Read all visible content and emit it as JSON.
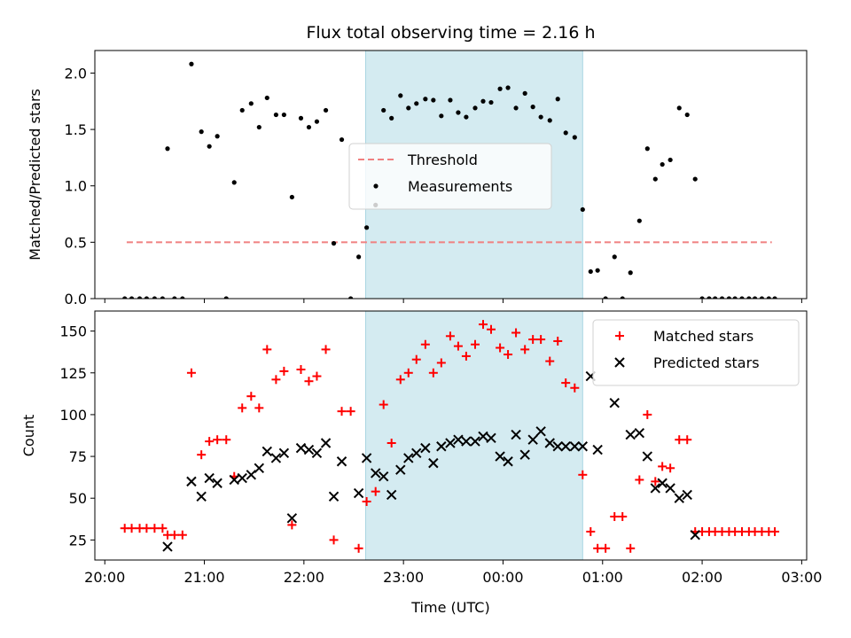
{
  "chart_data": {
    "type": "scatter",
    "title": "Flux total observing time = 2.16 h",
    "xlabel": "Time (UTC)",
    "x_unit": "hours since 20:00 UTC",
    "xlim": [
      -0.1,
      7.05
    ],
    "x_ticks": [
      {
        "value": 0,
        "label": "20:00"
      },
      {
        "value": 1,
        "label": "21:00"
      },
      {
        "value": 2,
        "label": "22:00"
      },
      {
        "value": 3,
        "label": "23:00"
      },
      {
        "value": 4,
        "label": "00:00"
      },
      {
        "value": 5,
        "label": "01:00"
      },
      {
        "value": 6,
        "label": "02:00"
      },
      {
        "value": 7,
        "label": "03:00"
      }
    ],
    "observing_window": {
      "start": 2.62,
      "end": 4.8,
      "color": "#d4ebf1"
    },
    "panels": [
      {
        "name": "ratio",
        "ylabel": "Matched/Predicted stars",
        "ylim": [
          0,
          2.2
        ],
        "y_ticks": [
          {
            "value": 0,
            "label": "0.0"
          },
          {
            "value": 0.5,
            "label": "0.5"
          },
          {
            "value": 1,
            "label": "1.0"
          },
          {
            "value": 1.5,
            "label": "1.5"
          },
          {
            "value": 2,
            "label": "2.0"
          }
        ],
        "legend_position": "center",
        "threshold": {
          "name": "Threshold",
          "y": 0.5,
          "x_start": 0.22,
          "x_end": 6.7,
          "color": "#f08080"
        },
        "series": [
          {
            "name": "Measurements",
            "marker": "dot",
            "color": "#000000",
            "points": [
              [
                0.2,
                0
              ],
              [
                0.27,
                0
              ],
              [
                0.35,
                0
              ],
              [
                0.42,
                0
              ],
              [
                0.5,
                0
              ],
              [
                0.58,
                0
              ],
              [
                0.63,
                1.33
              ],
              [
                0.7,
                0
              ],
              [
                0.78,
                0
              ],
              [
                0.87,
                2.08
              ],
              [
                0.97,
                1.48
              ],
              [
                1.05,
                1.35
              ],
              [
                1.13,
                1.44
              ],
              [
                1.22,
                0
              ],
              [
                1.3,
                1.03
              ],
              [
                1.38,
                1.67
              ],
              [
                1.47,
                1.73
              ],
              [
                1.55,
                1.52
              ],
              [
                1.63,
                1.78
              ],
              [
                1.72,
                1.63
              ],
              [
                1.8,
                1.63
              ],
              [
                1.88,
                0.9
              ],
              [
                1.97,
                1.6
              ],
              [
                2.05,
                1.52
              ],
              [
                2.13,
                1.57
              ],
              [
                2.22,
                1.67
              ],
              [
                2.3,
                0.49
              ],
              [
                2.38,
                1.41
              ],
              [
                2.47,
                0
              ],
              [
                2.55,
                0.37
              ],
              [
                2.63,
                0.63
              ],
              [
                2.72,
                0.83
              ],
              [
                2.8,
                1.67
              ],
              [
                2.88,
                1.6
              ],
              [
                2.97,
                1.8
              ],
              [
                3.05,
                1.69
              ],
              [
                3.13,
                1.73
              ],
              [
                3.22,
                1.77
              ],
              [
                3.3,
                1.76
              ],
              [
                3.38,
                1.62
              ],
              [
                3.47,
                1.76
              ],
              [
                3.55,
                1.65
              ],
              [
                3.63,
                1.61
              ],
              [
                3.72,
                1.69
              ],
              [
                3.8,
                1.75
              ],
              [
                3.88,
                1.74
              ],
              [
                3.97,
                1.86
              ],
              [
                4.05,
                1.87
              ],
              [
                4.13,
                1.69
              ],
              [
                4.22,
                1.82
              ],
              [
                4.3,
                1.7
              ],
              [
                4.38,
                1.61
              ],
              [
                4.47,
                1.58
              ],
              [
                4.55,
                1.77
              ],
              [
                4.63,
                1.47
              ],
              [
                4.72,
                1.43
              ],
              [
                4.8,
                0.79
              ],
              [
                4.88,
                0.24
              ],
              [
                4.95,
                0.25
              ],
              [
                5.03,
                0
              ],
              [
                5.12,
                0.37
              ],
              [
                5.2,
                0
              ],
              [
                5.28,
                0.23
              ],
              [
                5.37,
                0.69
              ],
              [
                5.45,
                1.33
              ],
              [
                5.53,
                1.06
              ],
              [
                5.6,
                1.19
              ],
              [
                5.68,
                1.23
              ],
              [
                5.77,
                1.69
              ],
              [
                5.85,
                1.63
              ],
              [
                5.93,
                1.06
              ],
              [
                6.0,
                0
              ],
              [
                6.07,
                0
              ],
              [
                6.13,
                0
              ],
              [
                6.2,
                0
              ],
              [
                6.27,
                0
              ],
              [
                6.33,
                0
              ],
              [
                6.4,
                0
              ],
              [
                6.47,
                0
              ],
              [
                6.53,
                0
              ],
              [
                6.6,
                0
              ],
              [
                6.67,
                0
              ],
              [
                6.73,
                0
              ]
            ]
          }
        ]
      },
      {
        "name": "count",
        "ylabel": "Count",
        "ylim": [
          13,
          162
        ],
        "y_ticks": [
          {
            "value": 25,
            "label": "25"
          },
          {
            "value": 50,
            "label": "50"
          },
          {
            "value": 75,
            "label": "75"
          },
          {
            "value": 100,
            "label": "100"
          },
          {
            "value": 125,
            "label": "125"
          },
          {
            "value": 150,
            "label": "150"
          }
        ],
        "legend_position": "upper right",
        "series": [
          {
            "name": "Matched stars",
            "marker": "plus",
            "color": "#ff0000",
            "points": [
              [
                0.2,
                32
              ],
              [
                0.27,
                32
              ],
              [
                0.35,
                32
              ],
              [
                0.42,
                32
              ],
              [
                0.5,
                32
              ],
              [
                0.58,
                32
              ],
              [
                0.63,
                28
              ],
              [
                0.7,
                28
              ],
              [
                0.78,
                28
              ],
              [
                0.87,
                125
              ],
              [
                0.97,
                76
              ],
              [
                1.05,
                84
              ],
              [
                1.13,
                85
              ],
              [
                1.22,
                85
              ],
              [
                1.3,
                63
              ],
              [
                1.38,
                104
              ],
              [
                1.47,
                111
              ],
              [
                1.55,
                104
              ],
              [
                1.63,
                139
              ],
              [
                1.72,
                121
              ],
              [
                1.8,
                126
              ],
              [
                1.88,
                34
              ],
              [
                1.97,
                127
              ],
              [
                2.05,
                120
              ],
              [
                2.13,
                123
              ],
              [
                2.22,
                139
              ],
              [
                2.3,
                25
              ],
              [
                2.38,
                102
              ],
              [
                2.47,
                102
              ],
              [
                2.55,
                20
              ],
              [
                2.63,
                48
              ],
              [
                2.72,
                54
              ],
              [
                2.8,
                106
              ],
              [
                2.88,
                83
              ],
              [
                2.97,
                121
              ],
              [
                3.05,
                125
              ],
              [
                3.13,
                133
              ],
              [
                3.22,
                142
              ],
              [
                3.3,
                125
              ],
              [
                3.38,
                131
              ],
              [
                3.47,
                147
              ],
              [
                3.55,
                141
              ],
              [
                3.63,
                135
              ],
              [
                3.72,
                142
              ],
              [
                3.8,
                154
              ],
              [
                3.88,
                151
              ],
              [
                3.97,
                140
              ],
              [
                4.05,
                136
              ],
              [
                4.13,
                149
              ],
              [
                4.22,
                139
              ],
              [
                4.3,
                145
              ],
              [
                4.38,
                145
              ],
              [
                4.47,
                132
              ],
              [
                4.55,
                144
              ],
              [
                4.63,
                119
              ],
              [
                4.72,
                116
              ],
              [
                4.8,
                64
              ],
              [
                4.88,
                30
              ],
              [
                4.95,
                20
              ],
              [
                5.03,
                20
              ],
              [
                5.12,
                39
              ],
              [
                5.2,
                39
              ],
              [
                5.28,
                20
              ],
              [
                5.37,
                61
              ],
              [
                5.45,
                100
              ],
              [
                5.53,
                60
              ],
              [
                5.6,
                69
              ],
              [
                5.68,
                68
              ],
              [
                5.77,
                85
              ],
              [
                5.85,
                85
              ],
              [
                5.93,
                30
              ],
              [
                6.0,
                30
              ],
              [
                6.07,
                30
              ],
              [
                6.13,
                30
              ],
              [
                6.2,
                30
              ],
              [
                6.27,
                30
              ],
              [
                6.33,
                30
              ],
              [
                6.4,
                30
              ],
              [
                6.47,
                30
              ],
              [
                6.53,
                30
              ],
              [
                6.6,
                30
              ],
              [
                6.67,
                30
              ],
              [
                6.73,
                30
              ]
            ]
          },
          {
            "name": "Predicted stars",
            "marker": "x",
            "color": "#000000",
            "points": [
              [
                0.63,
                21
              ],
              [
                0.87,
                60
              ],
              [
                0.97,
                51
              ],
              [
                1.05,
                62
              ],
              [
                1.13,
                59
              ],
              [
                1.3,
                61
              ],
              [
                1.38,
                62
              ],
              [
                1.47,
                64
              ],
              [
                1.55,
                68
              ],
              [
                1.63,
                78
              ],
              [
                1.72,
                74
              ],
              [
                1.8,
                77
              ],
              [
                1.88,
                38
              ],
              [
                1.97,
                80
              ],
              [
                2.05,
                79
              ],
              [
                2.13,
                77
              ],
              [
                2.22,
                83
              ],
              [
                2.3,
                51
              ],
              [
                2.38,
                72
              ],
              [
                2.55,
                53
              ],
              [
                2.63,
                74
              ],
              [
                2.72,
                65
              ],
              [
                2.8,
                63
              ],
              [
                2.88,
                52
              ],
              [
                2.97,
                67
              ],
              [
                3.05,
                74
              ],
              [
                3.13,
                77
              ],
              [
                3.22,
                80
              ],
              [
                3.3,
                71
              ],
              [
                3.38,
                81
              ],
              [
                3.47,
                83
              ],
              [
                3.55,
                85
              ],
              [
                3.63,
                84
              ],
              [
                3.72,
                84
              ],
              [
                3.8,
                87
              ],
              [
                3.88,
                86
              ],
              [
                3.97,
                75
              ],
              [
                4.05,
                72
              ],
              [
                4.13,
                88
              ],
              [
                4.22,
                76
              ],
              [
                4.3,
                85
              ],
              [
                4.38,
                90
              ],
              [
                4.47,
                83
              ],
              [
                4.55,
                81
              ],
              [
                4.63,
                81
              ],
              [
                4.72,
                81
              ],
              [
                4.8,
                81
              ],
              [
                4.88,
                123
              ],
              [
                4.95,
                79
              ],
              [
                5.12,
                107
              ],
              [
                5.28,
                88
              ],
              [
                5.37,
                89
              ],
              [
                5.45,
                75
              ],
              [
                5.53,
                56
              ],
              [
                5.6,
                59
              ],
              [
                5.68,
                56
              ],
              [
                5.77,
                50
              ],
              [
                5.85,
                52
              ],
              [
                5.93,
                28
              ]
            ]
          }
        ]
      }
    ]
  }
}
